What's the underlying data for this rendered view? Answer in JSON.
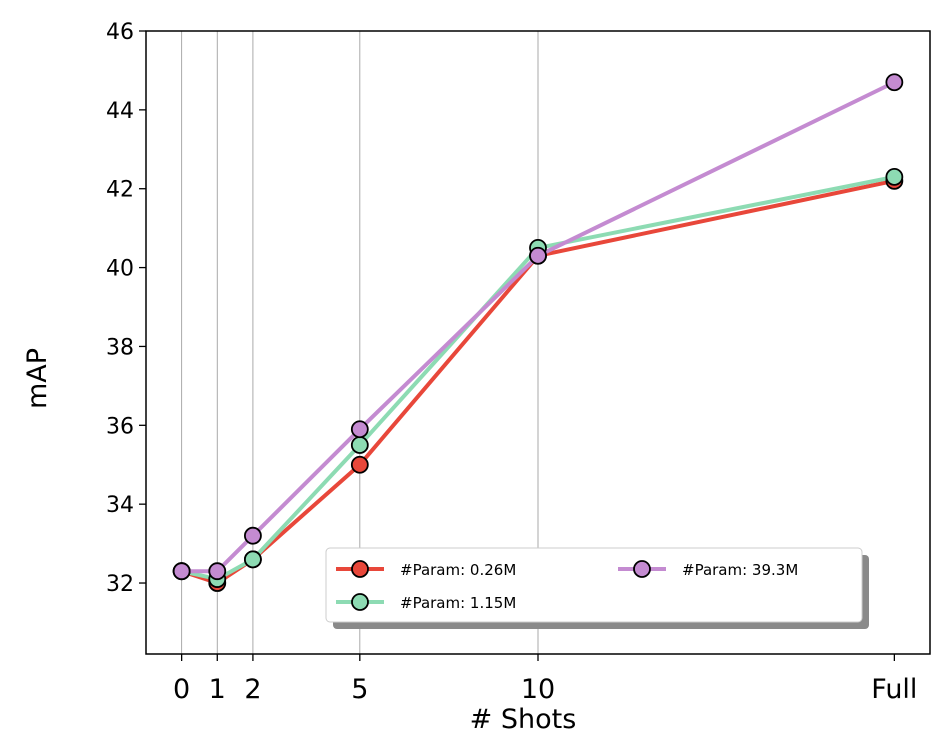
{
  "chart_data": {
    "type": "line",
    "xlabel": "# Shots",
    "ylabel": "mAP",
    "x_ticks": [
      {
        "x": 0,
        "label": "0"
      },
      {
        "x": 1,
        "label": "1"
      },
      {
        "x": 2,
        "label": "2"
      },
      {
        "x": 5,
        "label": "5"
      },
      {
        "x": 10,
        "label": "10"
      },
      {
        "x": 20,
        "label": "Full"
      }
    ],
    "x": [
      0,
      1,
      2,
      5,
      10,
      20
    ],
    "xlim": [
      -1,
      21
    ],
    "ylim": [
      30.2,
      46
    ],
    "y_ticks": [
      32,
      34,
      36,
      38,
      40,
      42,
      44,
      46
    ],
    "vertical_gridlines_at": [
      0,
      1,
      2,
      5,
      10
    ],
    "legend_position": "lower-right",
    "series": [
      {
        "name": "#Param: 0.26M",
        "color": "#e8473a",
        "values": [
          32.3,
          32.0,
          32.6,
          35.0,
          40.3,
          42.2
        ]
      },
      {
        "name": "#Param: 1.15M",
        "color": "#8ddbb3",
        "values": [
          32.3,
          32.1,
          32.6,
          35.5,
          40.5,
          42.3
        ]
      },
      {
        "name": "#Param: 39.3M",
        "color": "#c48bd1",
        "values": [
          32.3,
          32.3,
          33.2,
          35.9,
          40.3,
          44.7
        ]
      }
    ]
  }
}
